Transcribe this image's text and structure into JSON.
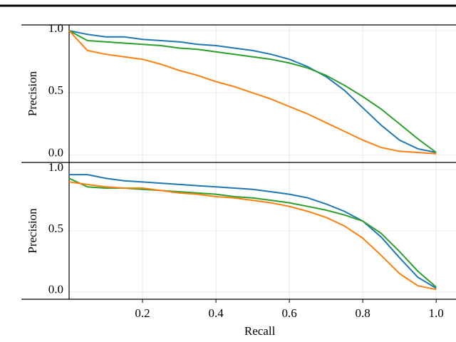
{
  "chart_data": [
    {
      "type": "line",
      "ylabel": "Precision",
      "x": [
        0,
        0.05,
        0.1,
        0.15,
        0.2,
        0.25,
        0.3,
        0.35,
        0.4,
        0.45,
        0.5,
        0.55,
        0.6,
        0.65,
        0.7,
        0.75,
        0.8,
        0.85,
        0.9,
        0.95,
        1.0
      ],
      "series": [
        {
          "color": "#1f77b4",
          "values": [
            1.0,
            0.97,
            0.95,
            0.95,
            0.93,
            0.92,
            0.91,
            0.89,
            0.88,
            0.86,
            0.84,
            0.81,
            0.77,
            0.71,
            0.63,
            0.52,
            0.38,
            0.24,
            0.12,
            0.05,
            0.02
          ]
        },
        {
          "color": "#2ca02c",
          "values": [
            1.0,
            0.92,
            0.91,
            0.9,
            0.89,
            0.88,
            0.86,
            0.85,
            0.83,
            0.81,
            0.79,
            0.77,
            0.74,
            0.7,
            0.64,
            0.56,
            0.47,
            0.37,
            0.25,
            0.13,
            0.02
          ]
        },
        {
          "color": "#ff7f0e",
          "values": [
            1.0,
            0.84,
            0.81,
            0.79,
            0.77,
            0.73,
            0.68,
            0.64,
            0.59,
            0.55,
            0.5,
            0.45,
            0.39,
            0.33,
            0.26,
            0.19,
            0.12,
            0.06,
            0.03,
            0.02,
            0.01
          ]
        }
      ],
      "xlim": [
        0,
        1.054
      ],
      "ylim": [
        -0.06,
        1.046
      ],
      "yticks": [
        {
          "value": 0,
          "label": "0.0"
        },
        0.5,
        {
          "value": 1,
          "label": "1.0"
        }
      ],
      "grid": true
    },
    {
      "type": "line",
      "ylabel": "Precision",
      "xlabel": "Recall",
      "x": [
        0,
        0.05,
        0.1,
        0.15,
        0.2,
        0.25,
        0.3,
        0.35,
        0.4,
        0.45,
        0.5,
        0.55,
        0.6,
        0.65,
        0.7,
        0.75,
        0.8,
        0.85,
        0.9,
        0.95,
        1.0
      ],
      "series": [
        {
          "color": "#1f77b4",
          "values": [
            0.96,
            0.96,
            0.93,
            0.91,
            0.9,
            0.89,
            0.88,
            0.87,
            0.86,
            0.85,
            0.84,
            0.82,
            0.8,
            0.77,
            0.72,
            0.66,
            0.58,
            0.45,
            0.28,
            0.12,
            0.03
          ]
        },
        {
          "color": "#2ca02c",
          "values": [
            0.93,
            0.86,
            0.85,
            0.85,
            0.84,
            0.83,
            0.82,
            0.81,
            0.8,
            0.78,
            0.77,
            0.75,
            0.73,
            0.7,
            0.67,
            0.63,
            0.58,
            0.48,
            0.33,
            0.17,
            0.04
          ]
        },
        {
          "color": "#ff7f0e",
          "values": [
            0.9,
            0.88,
            0.86,
            0.85,
            0.85,
            0.83,
            0.81,
            0.8,
            0.78,
            0.77,
            0.75,
            0.73,
            0.7,
            0.66,
            0.61,
            0.54,
            0.44,
            0.3,
            0.15,
            0.05,
            0.02
          ]
        }
      ],
      "xlim": [
        0,
        1.054
      ],
      "ylim": [
        -0.06,
        1.06
      ],
      "xticks": [
        0.2,
        0.4,
        0.6,
        0.8,
        {
          "value": 1,
          "label": "1.0"
        }
      ],
      "yticks": [
        {
          "value": 0,
          "label": "0.0"
        },
        0.5,
        {
          "value": 1,
          "label": "1.0"
        }
      ],
      "grid": true
    }
  ]
}
